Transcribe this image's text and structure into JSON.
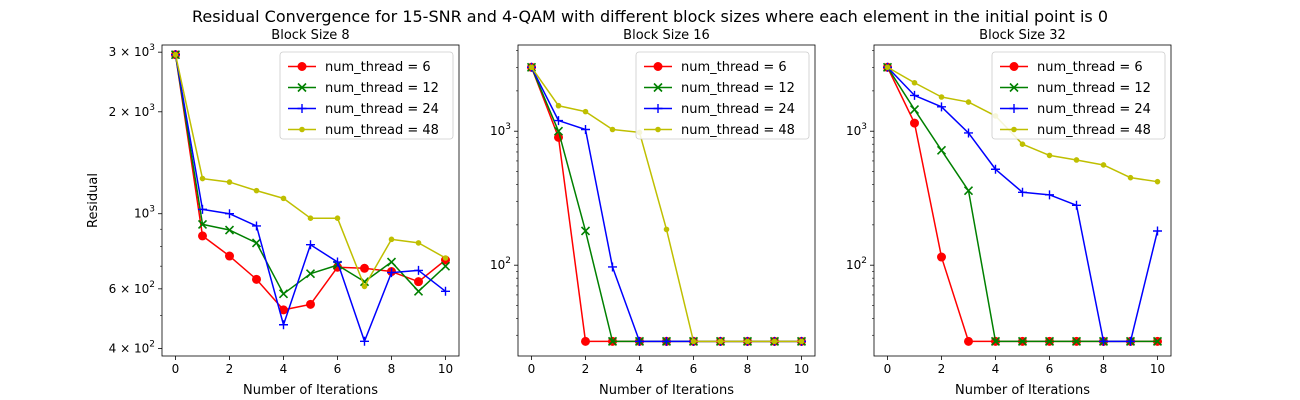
{
  "figure": {
    "title": "Residual Convergence for 15-SNR and 4-QAM with different block sizes where each element in the initial point is 0"
  },
  "chart_data": [
    {
      "type": "line",
      "title": "Block Size 8",
      "xlabel": "Number of Iterations",
      "ylabel": "Residual",
      "yscale": "log",
      "xlim": [
        -0.5,
        10.5
      ],
      "ylim": [
        380,
        3150
      ],
      "xticks": [
        0,
        2,
        4,
        6,
        8,
        10
      ],
      "yticks": [
        {
          "value": 400,
          "mantissa": "4",
          "exp": "2"
        },
        {
          "value": 600,
          "mantissa": "6",
          "exp": "2"
        },
        {
          "value": 1000,
          "mantissa": "",
          "exp": "3"
        },
        {
          "value": 2000,
          "mantissa": "2",
          "exp": "3"
        },
        {
          "value": 3000,
          "mantissa": "3",
          "exp": "3"
        }
      ],
      "minor_ticks": [
        500,
        700,
        800,
        900
      ],
      "legend_position": "upper right",
      "x": [
        0,
        1,
        2,
        3,
        4,
        5,
        6,
        7,
        8,
        9,
        10
      ],
      "series": [
        {
          "name": "num_thread = 6",
          "color": "#ff0000",
          "marker": "o",
          "values": [
            2950,
            860,
            750,
            640,
            520,
            540,
            695,
            690,
            675,
            630,
            730
          ]
        },
        {
          "name": "num_thread = 12",
          "color": "#008000",
          "marker": "x",
          "values": [
            2950,
            930,
            895,
            820,
            580,
            665,
            705,
            630,
            720,
            590,
            700
          ]
        },
        {
          "name": "num_thread = 24",
          "color": "#0000ff",
          "marker": "+",
          "values": [
            2950,
            1030,
            1000,
            920,
            470,
            810,
            720,
            420,
            670,
            680,
            590
          ]
        },
        {
          "name": "num_thread = 48",
          "color": "#bfbf00",
          "marker": ".",
          "values": [
            2950,
            1270,
            1240,
            1170,
            1110,
            970,
            970,
            610,
            840,
            820,
            740
          ]
        }
      ]
    },
    {
      "type": "line",
      "title": "Block Size 16",
      "xlabel": "Number of Iterations",
      "ylabel": "",
      "yscale": "log",
      "xlim": [
        -0.5,
        10.5
      ],
      "ylim": [
        21,
        4400
      ],
      "xticks": [
        0,
        2,
        4,
        6,
        8,
        10
      ],
      "yticks": [
        {
          "value": 100,
          "mantissa": "",
          "exp": "2"
        },
        {
          "value": 1000,
          "mantissa": "",
          "exp": "3"
        }
      ],
      "minor_ticks": [
        30,
        40,
        50,
        60,
        70,
        80,
        90,
        200,
        300,
        400,
        500,
        600,
        700,
        800,
        900,
        2000,
        3000,
        4000
      ],
      "legend_position": "upper right",
      "x": [
        0,
        1,
        2,
        3,
        4,
        5,
        6,
        7,
        8,
        9,
        10
      ],
      "series": [
        {
          "name": "num_thread = 6",
          "color": "#ff0000",
          "marker": "o",
          "values": [
            3000,
            900,
            27,
            27,
            27,
            27,
            27,
            27,
            27,
            27,
            27
          ]
        },
        {
          "name": "num_thread = 12",
          "color": "#008000",
          "marker": "x",
          "values": [
            3000,
            1000,
            180,
            27,
            27,
            27,
            27,
            27,
            27,
            27,
            27
          ]
        },
        {
          "name": "num_thread = 24",
          "color": "#0000ff",
          "marker": "+",
          "values": [
            3000,
            1200,
            1030,
            97,
            27,
            27,
            27,
            27,
            27,
            27,
            27
          ]
        },
        {
          "name": "num_thread = 48",
          "color": "#bfbf00",
          "marker": ".",
          "values": [
            3000,
            1550,
            1400,
            1030,
            980,
            185,
            27,
            27,
            27,
            27,
            27
          ]
        }
      ]
    },
    {
      "type": "line",
      "title": "Block Size 32",
      "xlabel": "Number of Iterations",
      "ylabel": "",
      "yscale": "log",
      "xlim": [
        -0.5,
        10.5
      ],
      "ylim": [
        21,
        4400
      ],
      "xticks": [
        0,
        2,
        4,
        6,
        8,
        10
      ],
      "yticks": [
        {
          "value": 100,
          "mantissa": "",
          "exp": "2"
        },
        {
          "value": 1000,
          "mantissa": "",
          "exp": "3"
        }
      ],
      "minor_ticks": [
        30,
        40,
        50,
        60,
        70,
        80,
        90,
        200,
        300,
        400,
        500,
        600,
        700,
        800,
        900,
        2000,
        3000,
        4000
      ],
      "legend_position": "upper right",
      "x": [
        0,
        1,
        2,
        3,
        4,
        5,
        6,
        7,
        8,
        9,
        10
      ],
      "series": [
        {
          "name": "num_thread = 6",
          "color": "#ff0000",
          "marker": "o",
          "values": [
            3000,
            1150,
            115,
            27,
            27,
            27,
            27,
            27,
            27,
            27,
            27
          ]
        },
        {
          "name": "num_thread = 12",
          "color": "#008000",
          "marker": "x",
          "values": [
            3000,
            1450,
            720,
            360,
            27,
            27,
            27,
            27,
            27,
            27,
            27
          ]
        },
        {
          "name": "num_thread = 24",
          "color": "#0000ff",
          "marker": "+",
          "values": [
            3000,
            1850,
            1520,
            970,
            520,
            350,
            335,
            280,
            27,
            27,
            180
          ]
        },
        {
          "name": "num_thread = 48",
          "color": "#bfbf00",
          "marker": ".",
          "values": [
            3000,
            2300,
            1800,
            1650,
            1300,
            800,
            660,
            610,
            560,
            450,
            420
          ]
        }
      ]
    }
  ]
}
